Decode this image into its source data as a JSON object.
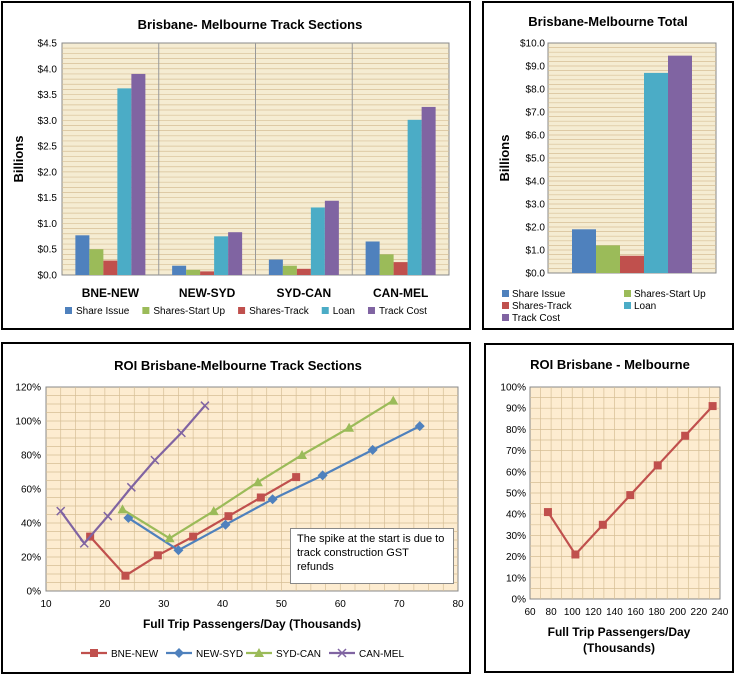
{
  "chart_data": [
    {
      "id": "c1",
      "type": "bar",
      "title": "Brisbane- Melbourne Track Sections",
      "ylabel": "Billions",
      "xlabel": "",
      "ylim": [
        0,
        4.5
      ],
      "yticks": [
        "$0.0",
        "$0.5",
        "$1.0",
        "$1.5",
        "$2.0",
        "$2.5",
        "$3.0",
        "$3.5",
        "$4.0",
        "$4.5"
      ],
      "categories": [
        "BNE-NEW",
        "NEW-SYD",
        "SYD-CAN",
        "CAN-MEL"
      ],
      "series": [
        {
          "name": "Share Issue",
          "color": "#4f81bd",
          "values": [
            0.77,
            0.18,
            0.3,
            0.65
          ]
        },
        {
          "name": "Shares-Start Up",
          "color": "#9bbb59",
          "values": [
            0.5,
            0.1,
            0.18,
            0.4
          ]
        },
        {
          "name": "Shares-Track",
          "color": "#c0504d",
          "values": [
            0.28,
            0.07,
            0.12,
            0.25
          ]
        },
        {
          "name": "Loan",
          "color": "#4bacc6",
          "values": [
            3.62,
            0.75,
            1.31,
            3.01
          ]
        },
        {
          "name": "Track Cost",
          "color": "#8064a2",
          "values": [
            3.9,
            0.83,
            1.44,
            3.26
          ]
        }
      ],
      "legend": "bottom"
    },
    {
      "id": "c2",
      "type": "bar",
      "title": "Brisbane-Melbourne Total",
      "ylabel": "Billions",
      "xlabel": "",
      "ylim": [
        0,
        10
      ],
      "yticks": [
        "$0.0",
        "$1.0",
        "$2.0",
        "$3.0",
        "$4.0",
        "$5.0",
        "$6.0",
        "$7.0",
        "$8.0",
        "$9.0",
        "$10.0"
      ],
      "categories": [
        ""
      ],
      "series": [
        {
          "name": "Share Issue",
          "color": "#4f81bd",
          "values": [
            1.9
          ]
        },
        {
          "name": "Shares-Start Up",
          "color": "#9bbb59",
          "values": [
            1.2
          ]
        },
        {
          "name": "Shares-Track",
          "color": "#c0504d",
          "values": [
            0.75
          ]
        },
        {
          "name": "Loan",
          "color": "#4bacc6",
          "values": [
            8.7
          ]
        },
        {
          "name": "Track Cost",
          "color": "#8064a2",
          "values": [
            9.45
          ]
        }
      ],
      "legend": "bottom"
    },
    {
      "id": "c3",
      "type": "line",
      "title": "ROI Brisbane-Melbourne Track Sections",
      "xlabel": "Full Trip Passengers/Day (Thousands)",
      "ylabel": "",
      "xlim": [
        10,
        80
      ],
      "ylim": [
        0,
        1.2
      ],
      "xticks": [
        "10",
        "20",
        "30",
        "40",
        "50",
        "60",
        "70",
        "80"
      ],
      "yticks": [
        "0%",
        "20%",
        "40%",
        "60%",
        "80%",
        "100%",
        "120%"
      ],
      "series": [
        {
          "name": "BNE-NEW",
          "color": "#c0504d",
          "marker": "square",
          "x": [
            17.5,
            23.5,
            29,
            35,
            41,
            46.5,
            52.5
          ],
          "y": [
            0.32,
            0.09,
            0.21,
            0.32,
            0.44,
            0.55,
            0.67
          ]
        },
        {
          "name": "NEW-SYD",
          "color": "#4f81bd",
          "marker": "diamond",
          "x": [
            24,
            32.5,
            40.5,
            48.5,
            57,
            65.5,
            73.5
          ],
          "y": [
            0.43,
            0.24,
            0.39,
            0.54,
            0.68,
            0.83,
            0.97
          ]
        },
        {
          "name": "SYD-CAN",
          "color": "#9bbb59",
          "marker": "triangle",
          "x": [
            23,
            31,
            38.5,
            46,
            53.5,
            61.5,
            69
          ],
          "y": [
            0.48,
            0.31,
            0.47,
            0.64,
            0.8,
            0.96,
            1.12
          ]
        },
        {
          "name": "CAN-MEL",
          "color": "#8064a2",
          "marker": "x",
          "x": [
            12.5,
            16.5,
            20.5,
            24.5,
            28.5,
            33,
            37
          ],
          "y": [
            0.47,
            0.28,
            0.44,
            0.61,
            0.77,
            0.93,
            1.09
          ]
        }
      ],
      "annotation": "The spike at the start is due to track construction GST refunds",
      "legend": "bottom"
    },
    {
      "id": "c4",
      "type": "line",
      "title": "ROI Brisbane - Melbourne",
      "xlabel": "Full Trip Passengers/Day (Thousands)",
      "ylabel": "",
      "xlim": [
        60,
        240
      ],
      "ylim": [
        0,
        1.0
      ],
      "xticks": [
        "60",
        "80",
        "100",
        "120",
        "140",
        "160",
        "180",
        "200",
        "220",
        "240"
      ],
      "yticks": [
        "0%",
        "10%",
        "20%",
        "30%",
        "40%",
        "50%",
        "60%",
        "70%",
        "80%",
        "90%",
        "100%"
      ],
      "series": [
        {
          "name": "ROI",
          "color": "#c0504d",
          "marker": "square",
          "x": [
            77,
            103,
            129,
            155,
            181,
            207,
            233
          ],
          "y": [
            0.41,
            0.21,
            0.35,
            0.49,
            0.63,
            0.77,
            0.91
          ]
        }
      ]
    }
  ]
}
